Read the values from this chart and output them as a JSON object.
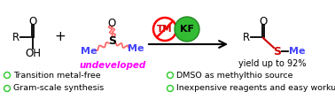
{
  "bg_color": "#ffffff",
  "plus_color": "#000000",
  "undeveloped_color": "#ff00ff",
  "tm_circle_color": "#ff0000",
  "kf_circle_color": "#33bb33",
  "tm_text_color": "#cc0000",
  "kf_text_color": "#000000",
  "no_symbol_color": "#ff0000",
  "me_color": "#4444ff",
  "bond_color": "#ff6666",
  "product_s_color": "#cc0000",
  "product_me_color": "#4444ff",
  "bullet_color": "#33cc33",
  "bullet_points": [
    "Transition metal-free",
    "Gram-scale synthesis",
    "DMSO as methylthio source",
    "Inexpensive reagents and easy workup"
  ],
  "yield_text": "yield up to 92%",
  "yield_color": "#000000",
  "figsize": [
    3.78,
    1.21
  ],
  "dpi": 100
}
